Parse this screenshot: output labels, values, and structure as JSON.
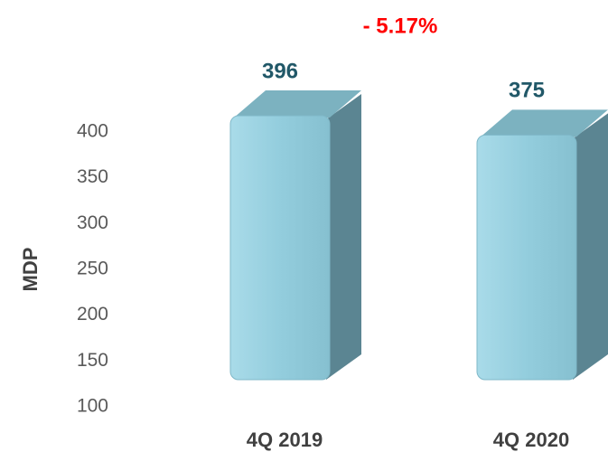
{
  "chart_data": {
    "type": "bar",
    "annotation": "- 5.17%",
    "y_axis_label": "MDP",
    "categories": [
      "4Q 2019",
      "4Q 2020"
    ],
    "values": [
      396,
      375
    ],
    "color": "#93cddd",
    "ylim": [
      100,
      400
    ],
    "yticks": [
      100,
      150,
      200,
      250,
      300,
      350,
      400
    ],
    "grid": false
  }
}
